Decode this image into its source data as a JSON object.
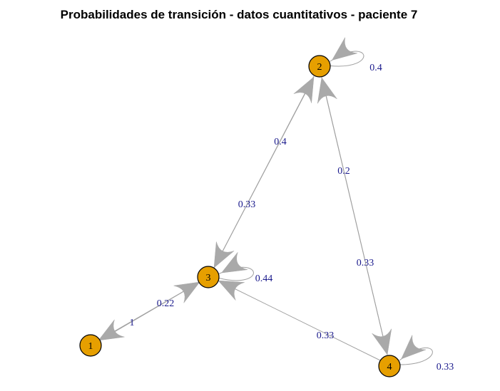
{
  "title": "Probabilidades de transición - datos cuantitativos - paciente 7",
  "colors": {
    "node_fill": "#e69f00",
    "node_stroke": "#000000",
    "edge": "#a0a0a0",
    "arrow": "#a9a9a9",
    "edge_label": "#1a1a8c"
  },
  "graph": {
    "nodes": [
      {
        "id": "1",
        "label": "1"
      },
      {
        "id": "2",
        "label": "2"
      },
      {
        "id": "3",
        "label": "3"
      },
      {
        "id": "4",
        "label": "4"
      }
    ],
    "edges": [
      {
        "from": "1",
        "to": "3",
        "label": "1"
      },
      {
        "from": "3",
        "to": "1",
        "label": "0.22"
      },
      {
        "from": "2",
        "to": "3",
        "label": "0.4"
      },
      {
        "from": "3",
        "to": "2",
        "label": "0.33"
      },
      {
        "from": "2",
        "to": "4",
        "label": "0.2"
      },
      {
        "from": "4",
        "to": "2",
        "label": "0.33"
      },
      {
        "from": "4",
        "to": "3",
        "label": "0.33"
      },
      {
        "from": "2",
        "to": "2",
        "label": "0.4"
      },
      {
        "from": "3",
        "to": "3",
        "label": "0.44"
      },
      {
        "from": "4",
        "to": "4",
        "label": "0.33"
      }
    ]
  }
}
